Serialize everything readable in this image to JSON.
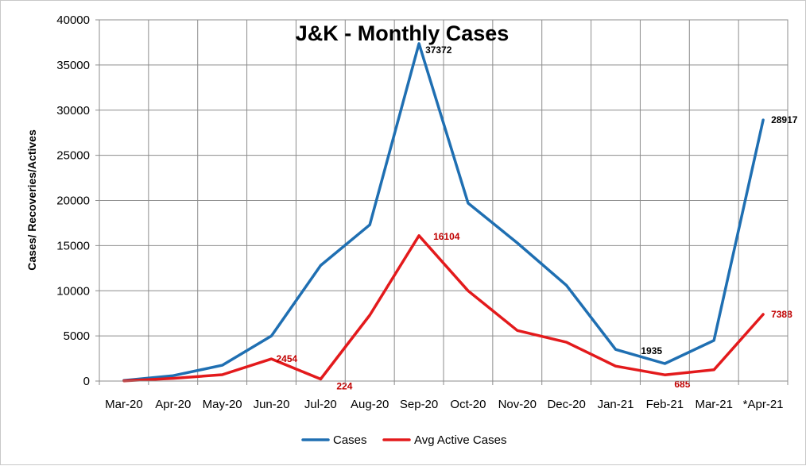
{
  "chart_data": {
    "type": "line",
    "title": "J&K - Monthly Cases",
    "xlabel": "",
    "ylabel": "Cases/ Recoveries/Actives",
    "ylim": [
      0,
      40000
    ],
    "yticks": [
      "0",
      "5000",
      "10000",
      "15000",
      "20000",
      "25000",
      "30000",
      "35000",
      "40000"
    ],
    "categories": [
      "Mar-20",
      "Apr-20",
      "May-20",
      "Jun-20",
      "Jul-20",
      "Aug-20",
      "Sep-20",
      "Oct-20",
      "Nov-20",
      "Dec-20",
      "Jan-21",
      "Feb-21",
      "Mar-21",
      "*Apr-21"
    ],
    "grid": true,
    "legend_position": "bottom",
    "series": [
      {
        "name": "Cases",
        "color": "#1f6fb2",
        "values": [
          60,
          600,
          1750,
          5000,
          12800,
          17300,
          37372,
          19700,
          15300,
          10600,
          3500,
          1935,
          4500,
          28917
        ],
        "labels": [
          {
            "index": 6,
            "text": "37372"
          },
          {
            "index": 11,
            "text": "1935"
          },
          {
            "index": 13,
            "text": "28917"
          }
        ]
      },
      {
        "name": "Avg Active Cases",
        "color": "#e31a1c",
        "values": [
          30,
          300,
          700,
          2454,
          224,
          7300,
          16104,
          10000,
          5600,
          4300,
          1650,
          685,
          1250,
          7388
        ],
        "labels": [
          {
            "index": 3,
            "text": "2454"
          },
          {
            "index": 4,
            "text": "224"
          },
          {
            "index": 6,
            "text": "16104"
          },
          {
            "index": 11,
            "text": "685"
          },
          {
            "index": 13,
            "text": "7388"
          }
        ]
      }
    ]
  }
}
